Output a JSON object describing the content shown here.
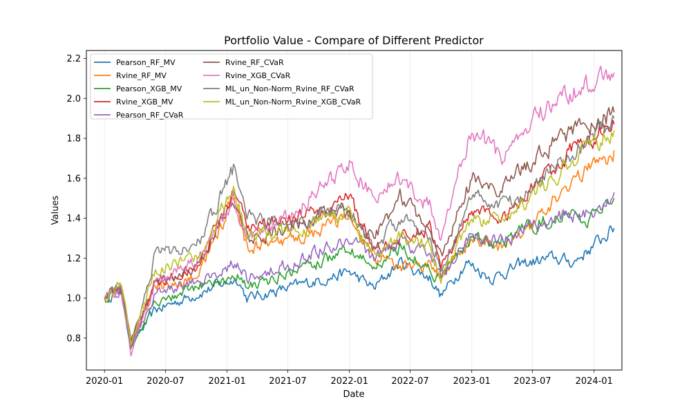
{
  "chart_data": {
    "type": "line",
    "title": "Portfolio Value - Compare of Different Predictor",
    "xlabel": "Date",
    "ylabel": "Values",
    "x_range": [
      "2019-11-08",
      "2024-03-24"
    ],
    "ylim": [
      0.64,
      2.24
    ],
    "x_ticks": [
      "2020-01",
      "2020-07",
      "2021-01",
      "2021-07",
      "2022-01",
      "2022-07",
      "2023-01",
      "2023-07",
      "2024-01"
    ],
    "y_ticks": [
      "0.8",
      "1.0",
      "1.2",
      "1.4",
      "1.6",
      "1.8",
      "2.0",
      "2.2"
    ],
    "grid": "vertical",
    "legend_position": "top-left",
    "legend_columns": 2,
    "series": [
      {
        "name": "Pearson_RF_MV",
        "color": "#1f77b4",
        "points": [
          [
            "2020-01-01",
            1.0
          ],
          [
            "2020-02-20",
            1.04
          ],
          [
            "2020-03-20",
            0.76
          ],
          [
            "2020-06-01",
            0.94
          ],
          [
            "2020-10-01",
            1.02
          ],
          [
            "2021-02-01",
            1.1
          ],
          [
            "2021-03-01",
            1.0
          ],
          [
            "2021-07-01",
            1.05
          ],
          [
            "2022-01-01",
            1.13
          ],
          [
            "2022-03-15",
            1.05
          ],
          [
            "2022-06-01",
            1.18
          ],
          [
            "2022-09-01",
            1.1
          ],
          [
            "2022-10-01",
            1.01
          ],
          [
            "2022-12-15",
            1.18
          ],
          [
            "2023-03-01",
            1.1
          ],
          [
            "2023-06-01",
            1.17
          ],
          [
            "2023-09-01",
            1.2
          ],
          [
            "2023-11-01",
            1.18
          ],
          [
            "2024-03-01",
            1.35
          ]
        ]
      },
      {
        "name": "Rvine_RF_MV",
        "color": "#ff7f0e",
        "points": [
          [
            "2020-01-01",
            1.0
          ],
          [
            "2020-02-20",
            1.05
          ],
          [
            "2020-03-20",
            0.77
          ],
          [
            "2020-06-01",
            1.05
          ],
          [
            "2020-10-01",
            1.1
          ],
          [
            "2021-01-20",
            1.5
          ],
          [
            "2021-03-01",
            1.25
          ],
          [
            "2021-07-01",
            1.28
          ],
          [
            "2022-01-01",
            1.4
          ],
          [
            "2022-03-15",
            1.2
          ],
          [
            "2022-06-01",
            1.15
          ],
          [
            "2022-09-01",
            1.18
          ],
          [
            "2022-10-01",
            1.1
          ],
          [
            "2023-01-01",
            1.3
          ],
          [
            "2023-04-01",
            1.25
          ],
          [
            "2023-07-01",
            1.38
          ],
          [
            "2023-10-01",
            1.55
          ],
          [
            "2024-03-01",
            1.74
          ]
        ]
      },
      {
        "name": "Pearson_XGB_MV",
        "color": "#2ca02c",
        "points": [
          [
            "2020-01-01",
            1.0
          ],
          [
            "2020-02-20",
            1.04
          ],
          [
            "2020-03-20",
            0.76
          ],
          [
            "2020-06-01",
            0.97
          ],
          [
            "2020-10-01",
            1.05
          ],
          [
            "2021-02-01",
            1.12
          ],
          [
            "2021-03-01",
            1.05
          ],
          [
            "2021-07-01",
            1.12
          ],
          [
            "2022-01-01",
            1.24
          ],
          [
            "2022-03-15",
            1.15
          ],
          [
            "2022-06-01",
            1.26
          ],
          [
            "2022-09-01",
            1.14
          ],
          [
            "2022-10-01",
            1.1
          ],
          [
            "2023-01-01",
            1.3
          ],
          [
            "2023-04-01",
            1.28
          ],
          [
            "2023-07-01",
            1.37
          ],
          [
            "2023-10-01",
            1.4
          ],
          [
            "2024-01-01",
            1.4
          ],
          [
            "2024-03-01",
            1.5
          ]
        ]
      },
      {
        "name": "Rvine_XGB_MV",
        "color": "#d62728",
        "points": [
          [
            "2020-01-01",
            1.0
          ],
          [
            "2020-02-20",
            1.05
          ],
          [
            "2020-03-20",
            0.77
          ],
          [
            "2020-06-01",
            1.08
          ],
          [
            "2020-10-01",
            1.15
          ],
          [
            "2021-01-20",
            1.52
          ],
          [
            "2021-03-01",
            1.35
          ],
          [
            "2021-07-01",
            1.38
          ],
          [
            "2022-01-01",
            1.5
          ],
          [
            "2022-03-15",
            1.25
          ],
          [
            "2022-06-01",
            1.3
          ],
          [
            "2022-09-01",
            1.35
          ],
          [
            "2022-10-01",
            1.15
          ],
          [
            "2023-01-01",
            1.45
          ],
          [
            "2023-04-01",
            1.4
          ],
          [
            "2023-07-01",
            1.55
          ],
          [
            "2023-10-01",
            1.7
          ],
          [
            "2024-03-01",
            1.87
          ]
        ]
      },
      {
        "name": "Pearson_RF_CVaR",
        "color": "#9467bd",
        "points": [
          [
            "2020-01-01",
            1.0
          ],
          [
            "2020-02-20",
            1.04
          ],
          [
            "2020-03-20",
            0.77
          ],
          [
            "2020-06-01",
            1.02
          ],
          [
            "2020-10-01",
            1.08
          ],
          [
            "2021-02-01",
            1.18
          ],
          [
            "2021-03-01",
            1.1
          ],
          [
            "2021-07-01",
            1.17
          ],
          [
            "2022-01-01",
            1.3
          ],
          [
            "2022-03-15",
            1.2
          ],
          [
            "2022-06-01",
            1.28
          ],
          [
            "2022-09-01",
            1.22
          ],
          [
            "2022-10-01",
            1.12
          ],
          [
            "2023-01-01",
            1.32
          ],
          [
            "2023-04-01",
            1.28
          ],
          [
            "2023-07-01",
            1.36
          ],
          [
            "2023-10-01",
            1.4
          ],
          [
            "2024-01-01",
            1.42
          ],
          [
            "2024-03-01",
            1.53
          ]
        ]
      },
      {
        "name": "Rvine_RF_CVaR",
        "color": "#8c564b",
        "points": [
          [
            "2020-01-01",
            1.0
          ],
          [
            "2020-02-20",
            1.06
          ],
          [
            "2020-03-20",
            0.78
          ],
          [
            "2020-06-01",
            1.08
          ],
          [
            "2020-10-01",
            1.15
          ],
          [
            "2021-01-20",
            1.5
          ],
          [
            "2021-03-01",
            1.3
          ],
          [
            "2021-07-01",
            1.35
          ],
          [
            "2022-01-01",
            1.45
          ],
          [
            "2022-03-15",
            1.3
          ],
          [
            "2022-06-01",
            1.5
          ],
          [
            "2022-09-01",
            1.35
          ],
          [
            "2022-10-01",
            1.2
          ],
          [
            "2023-01-01",
            1.6
          ],
          [
            "2023-04-01",
            1.55
          ],
          [
            "2023-07-01",
            1.7
          ],
          [
            "2023-10-01",
            1.8
          ],
          [
            "2024-03-01",
            1.93
          ]
        ]
      },
      {
        "name": "Rvine_XGB_CVaR",
        "color": "#e377c2",
        "points": [
          [
            "2020-01-01",
            1.0
          ],
          [
            "2020-02-20",
            1.06
          ],
          [
            "2020-03-20",
            0.72
          ],
          [
            "2020-06-01",
            1.08
          ],
          [
            "2020-10-01",
            1.18
          ],
          [
            "2021-01-20",
            1.5
          ],
          [
            "2021-03-01",
            1.3
          ],
          [
            "2021-07-01",
            1.4
          ],
          [
            "2022-01-01",
            1.68
          ],
          [
            "2022-03-15",
            1.5
          ],
          [
            "2022-06-01",
            1.6
          ],
          [
            "2022-09-01",
            1.45
          ],
          [
            "2022-10-01",
            1.3
          ],
          [
            "2023-01-01",
            1.85
          ],
          [
            "2023-04-01",
            1.7
          ],
          [
            "2023-07-01",
            1.9
          ],
          [
            "2023-10-01",
            2.0
          ],
          [
            "2024-03-01",
            2.13
          ]
        ]
      },
      {
        "name": "ML_un_Non-Norm_Rvine_RF_CVaR",
        "color": "#7f7f7f",
        "points": [
          [
            "2020-01-01",
            1.0
          ],
          [
            "2020-02-20",
            1.1
          ],
          [
            "2020-03-20",
            0.76
          ],
          [
            "2020-06-01",
            1.22
          ],
          [
            "2020-10-01",
            1.25
          ],
          [
            "2021-01-20",
            1.65
          ],
          [
            "2021-03-01",
            1.4
          ],
          [
            "2021-07-01",
            1.38
          ],
          [
            "2022-01-01",
            1.45
          ],
          [
            "2022-03-15",
            1.25
          ],
          [
            "2022-06-01",
            1.4
          ],
          [
            "2022-09-01",
            1.3
          ],
          [
            "2022-10-01",
            1.15
          ],
          [
            "2023-01-01",
            1.5
          ],
          [
            "2023-04-01",
            1.45
          ],
          [
            "2023-07-01",
            1.55
          ],
          [
            "2023-10-01",
            1.7
          ],
          [
            "2024-03-01",
            1.9
          ]
        ]
      },
      {
        "name": "ML_un_Non-Norm_Rvine_XGB_CVaR",
        "color": "#bcbd22",
        "points": [
          [
            "2020-01-01",
            1.0
          ],
          [
            "2020-02-20",
            1.08
          ],
          [
            "2020-03-20",
            0.76
          ],
          [
            "2020-06-01",
            1.15
          ],
          [
            "2020-10-01",
            1.2
          ],
          [
            "2021-01-20",
            1.55
          ],
          [
            "2021-03-01",
            1.32
          ],
          [
            "2021-07-01",
            1.33
          ],
          [
            "2022-01-01",
            1.42
          ],
          [
            "2022-03-15",
            1.2
          ],
          [
            "2022-06-01",
            1.3
          ],
          [
            "2022-09-01",
            1.25
          ],
          [
            "2022-10-01",
            1.1
          ],
          [
            "2023-01-01",
            1.4
          ],
          [
            "2023-04-01",
            1.38
          ],
          [
            "2023-07-01",
            1.5
          ],
          [
            "2023-10-01",
            1.65
          ],
          [
            "2024-03-01",
            1.84
          ]
        ]
      }
    ]
  }
}
